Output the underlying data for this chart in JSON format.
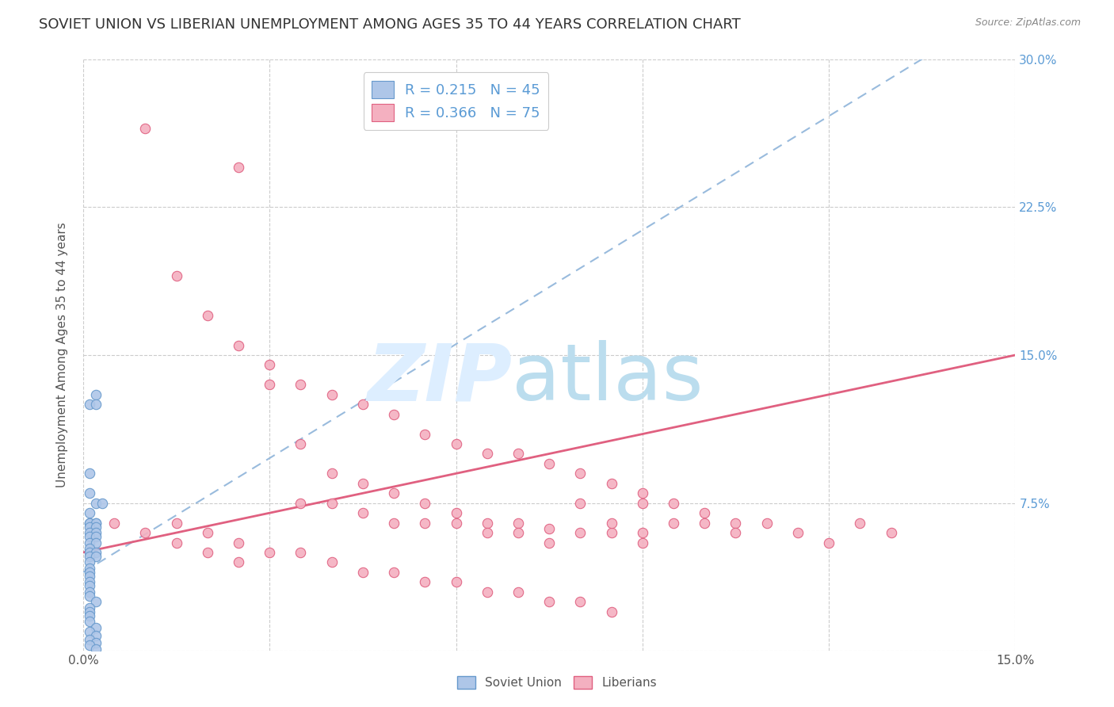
{
  "title": "SOVIET UNION VS LIBERIAN UNEMPLOYMENT AMONG AGES 35 TO 44 YEARS CORRELATION CHART",
  "source": "Source: ZipAtlas.com",
  "ylabel": "Unemployment Among Ages 35 to 44 years",
  "xlim": [
    0,
    0.15
  ],
  "ylim": [
    0,
    0.3
  ],
  "soviet_R": 0.215,
  "soviet_N": 45,
  "liberian_R": 0.366,
  "liberian_N": 75,
  "soviet_color": "#aec6e8",
  "soviet_edge_color": "#6699cc",
  "liberian_color": "#f4b0c0",
  "liberian_edge_color": "#e06080",
  "soviet_trend_color": "#99bbdd",
  "liberian_trend_color": "#e06080",
  "watermark_zip_color": "#ddeeff",
  "watermark_atlas_color": "#bbddee",
  "background_color": "#ffffff",
  "grid_color": "#cccccc",
  "tick_color": "#555555",
  "right_tick_color": "#5b9bd5",
  "title_color": "#333333",
  "source_color": "#888888",
  "legend_label_color": "#5b9bd5",
  "bottom_legend_color": "#555555",
  "soviet_x": [
    0.001,
    0.002,
    0.001,
    0.002,
    0.001,
    0.002,
    0.003,
    0.001,
    0.002,
    0.001,
    0.001,
    0.002,
    0.001,
    0.002,
    0.001,
    0.002,
    0.001,
    0.002,
    0.001,
    0.002,
    0.001,
    0.001,
    0.002,
    0.001,
    0.002,
    0.001,
    0.001,
    0.001,
    0.001,
    0.001,
    0.001,
    0.001,
    0.001,
    0.002,
    0.001,
    0.001,
    0.001,
    0.001,
    0.002,
    0.001,
    0.002,
    0.001,
    0.002,
    0.001,
    0.002
  ],
  "soviet_y": [
    0.09,
    0.13,
    0.125,
    0.125,
    0.08,
    0.075,
    0.075,
    0.07,
    0.065,
    0.065,
    0.065,
    0.065,
    0.063,
    0.063,
    0.06,
    0.06,
    0.058,
    0.058,
    0.055,
    0.055,
    0.052,
    0.05,
    0.05,
    0.048,
    0.048,
    0.045,
    0.042,
    0.04,
    0.038,
    0.035,
    0.033,
    0.03,
    0.028,
    0.025,
    0.022,
    0.02,
    0.018,
    0.015,
    0.012,
    0.01,
    0.008,
    0.006,
    0.004,
    0.003,
    0.001
  ],
  "liberian_x": [
    0.01,
    0.015,
    0.02,
    0.025,
    0.03,
    0.035,
    0.04,
    0.045,
    0.05,
    0.055,
    0.06,
    0.065,
    0.07,
    0.075,
    0.08,
    0.085,
    0.09,
    0.095,
    0.1,
    0.105,
    0.025,
    0.03,
    0.035,
    0.04,
    0.045,
    0.05,
    0.055,
    0.06,
    0.065,
    0.07,
    0.075,
    0.08,
    0.085,
    0.09,
    0.035,
    0.04,
    0.045,
    0.05,
    0.055,
    0.06,
    0.065,
    0.07,
    0.075,
    0.08,
    0.085,
    0.09,
    0.095,
    0.1,
    0.105,
    0.11,
    0.115,
    0.12,
    0.125,
    0.13,
    0.015,
    0.02,
    0.025,
    0.03,
    0.035,
    0.04,
    0.045,
    0.05,
    0.055,
    0.06,
    0.065,
    0.07,
    0.075,
    0.08,
    0.085,
    0.09,
    0.005,
    0.01,
    0.015,
    0.02,
    0.025
  ],
  "liberian_y": [
    0.265,
    0.19,
    0.17,
    0.155,
    0.145,
    0.135,
    0.13,
    0.125,
    0.12,
    0.11,
    0.105,
    0.1,
    0.1,
    0.095,
    0.09,
    0.085,
    0.08,
    0.075,
    0.07,
    0.065,
    0.245,
    0.135,
    0.105,
    0.09,
    0.085,
    0.08,
    0.075,
    0.07,
    0.065,
    0.065,
    0.062,
    0.06,
    0.06,
    0.055,
    0.075,
    0.075,
    0.07,
    0.065,
    0.065,
    0.065,
    0.06,
    0.06,
    0.055,
    0.075,
    0.065,
    0.06,
    0.065,
    0.065,
    0.06,
    0.065,
    0.06,
    0.055,
    0.065,
    0.06,
    0.065,
    0.06,
    0.055,
    0.05,
    0.05,
    0.045,
    0.04,
    0.04,
    0.035,
    0.035,
    0.03,
    0.03,
    0.025,
    0.025,
    0.02,
    0.075,
    0.065,
    0.06,
    0.055,
    0.05,
    0.045
  ]
}
